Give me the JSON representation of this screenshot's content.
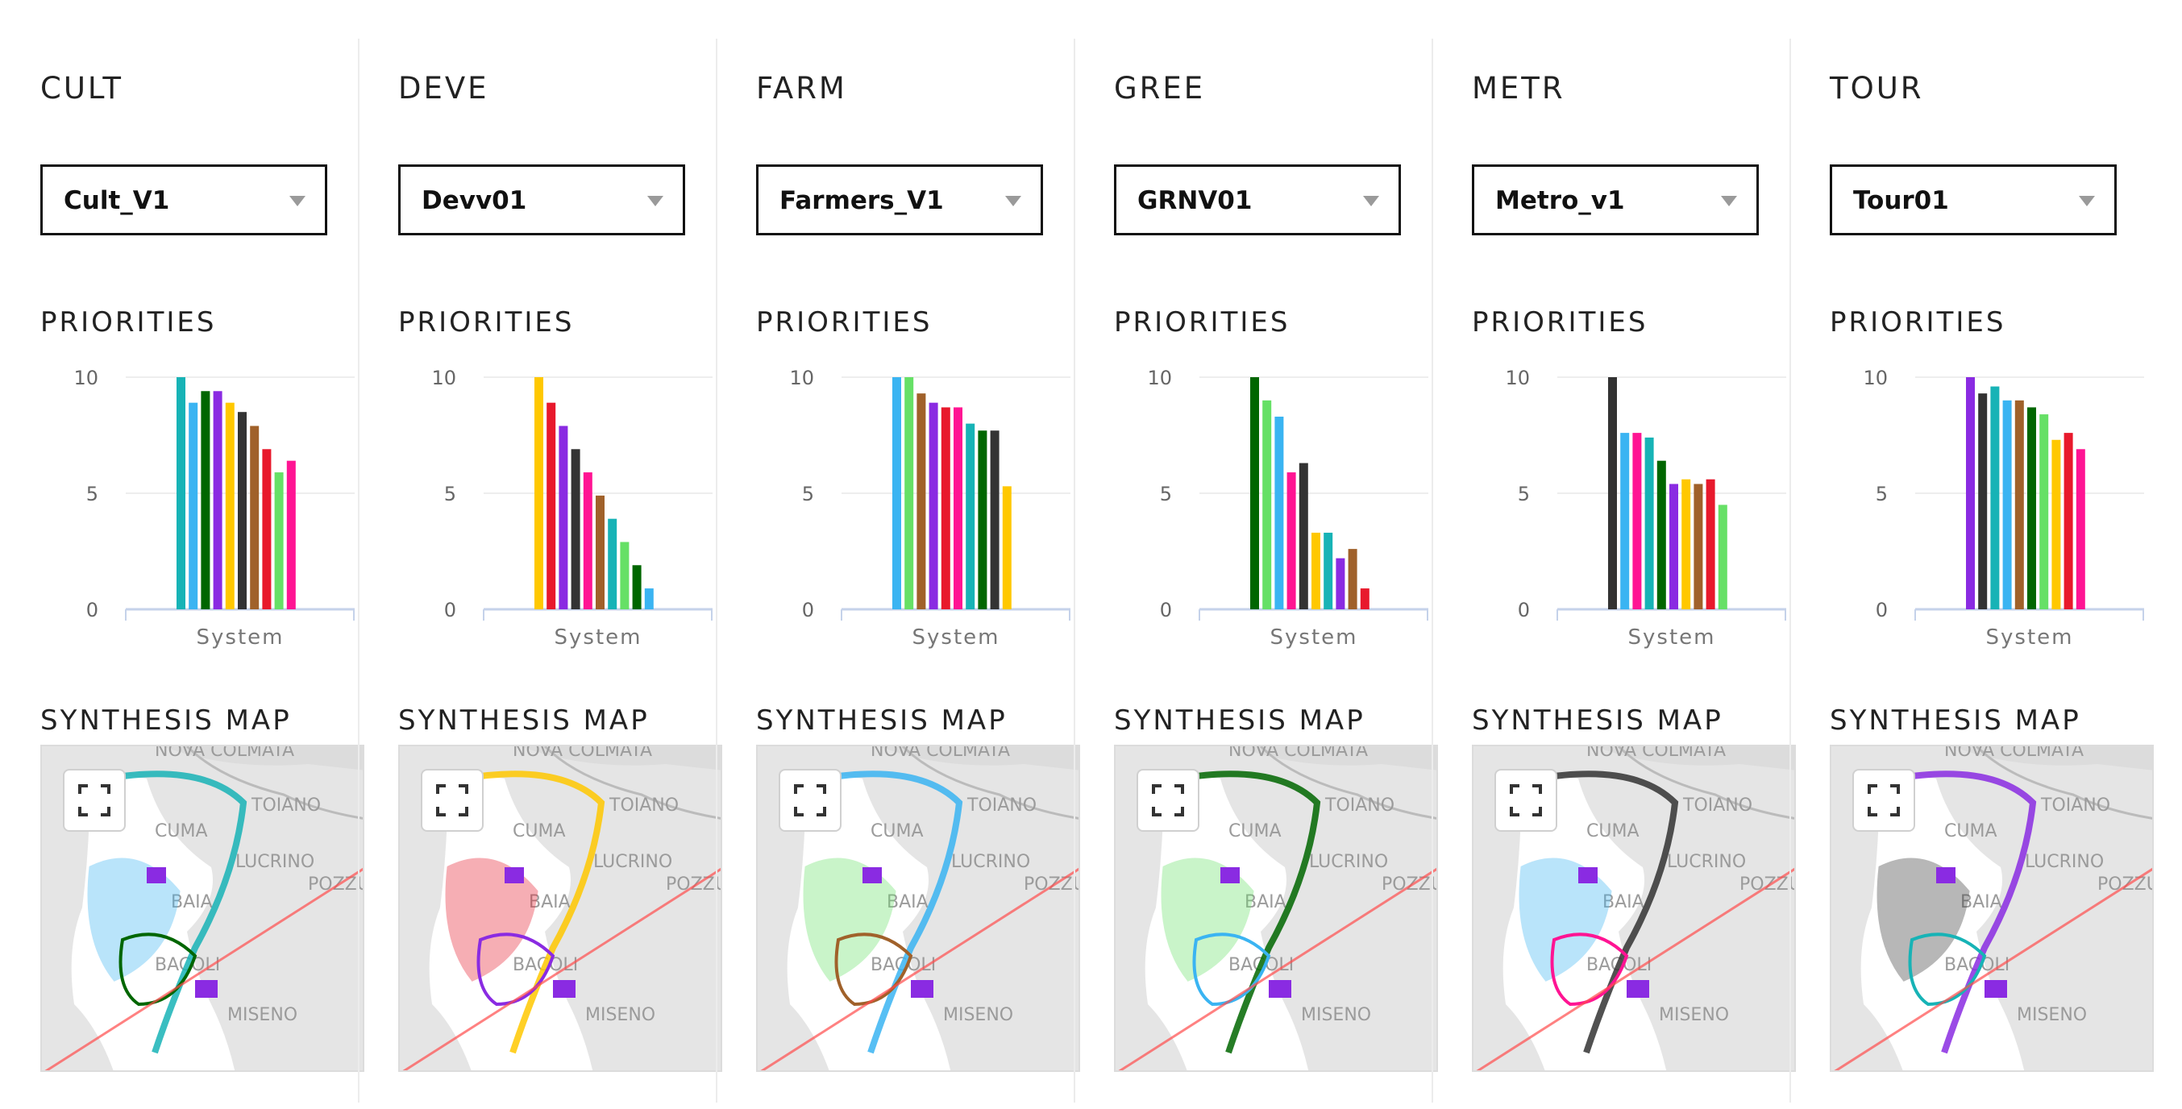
{
  "labels": {
    "priorities": "PRIORITIES",
    "synthesis_map": "SYNTHESIS MAP",
    "x_category": "System",
    "y_ticks": [
      "10",
      "5",
      "0"
    ]
  },
  "map_place_names": [
    "NOVA COLMATA",
    "TOIANO",
    "CUMA",
    "LUCRINO",
    "POZZUOLI",
    "BAIA",
    "BACOLI",
    "MISENO"
  ],
  "columns": [
    {
      "title": "CULT",
      "select_value": "Cult_V1"
    },
    {
      "title": "DEVE",
      "select_value": "Devv01"
    },
    {
      "title": "FARM",
      "select_value": "Farmers_V1"
    },
    {
      "title": "GREE",
      "select_value": "GRNV01"
    },
    {
      "title": "METR",
      "select_value": "Metro_v1"
    },
    {
      "title": "TOUR",
      "select_value": "Tour01"
    }
  ],
  "chart_data": [
    {
      "type": "bar",
      "title": "PRIORITIES",
      "categories": [
        "System"
      ],
      "ylim": [
        0,
        10
      ],
      "yticks": [
        0,
        5,
        10
      ],
      "bars": [
        {
          "color": "#17b3b6",
          "value": 10
        },
        {
          "color": "#3ab4f2",
          "value": 8.9
        },
        {
          "color": "#006600",
          "value": 9.4
        },
        {
          "color": "#8a2be2",
          "value": 9.4
        },
        {
          "color": "#ffc800",
          "value": 8.9
        },
        {
          "color": "#333333",
          "value": 8.5
        },
        {
          "color": "#a0612a",
          "value": 7.9
        },
        {
          "color": "#e8192c",
          "value": 6.9
        },
        {
          "color": "#66e066",
          "value": 5.9
        },
        {
          "color": "#ff1493",
          "value": 6.4
        }
      ]
    },
    {
      "type": "bar",
      "title": "PRIORITIES",
      "categories": [
        "System"
      ],
      "ylim": [
        0,
        10
      ],
      "yticks": [
        0,
        5,
        10
      ],
      "bars": [
        {
          "color": "#ffc800",
          "value": 10
        },
        {
          "color": "#e8192c",
          "value": 8.9
        },
        {
          "color": "#8a2be2",
          "value": 7.9
        },
        {
          "color": "#333333",
          "value": 6.9
        },
        {
          "color": "#ff1493",
          "value": 5.9
        },
        {
          "color": "#a0612a",
          "value": 4.9
        },
        {
          "color": "#17b3b6",
          "value": 3.9
        },
        {
          "color": "#66e066",
          "value": 2.9
        },
        {
          "color": "#006600",
          "value": 1.9
        },
        {
          "color": "#3ab4f2",
          "value": 0.9
        }
      ]
    },
    {
      "type": "bar",
      "title": "PRIORITIES",
      "categories": [
        "System"
      ],
      "ylim": [
        0,
        10
      ],
      "yticks": [
        0,
        5,
        10
      ],
      "bars": [
        {
          "color": "#3ab4f2",
          "value": 10
        },
        {
          "color": "#66e066",
          "value": 10
        },
        {
          "color": "#a0612a",
          "value": 9.3
        },
        {
          "color": "#8a2be2",
          "value": 8.9
        },
        {
          "color": "#e8192c",
          "value": 8.7
        },
        {
          "color": "#ff1493",
          "value": 8.7
        },
        {
          "color": "#17b3b6",
          "value": 8
        },
        {
          "color": "#006600",
          "value": 7.7
        },
        {
          "color": "#333333",
          "value": 7.7
        },
        {
          "color": "#ffc800",
          "value": 5.3
        }
      ]
    },
    {
      "type": "bar",
      "title": "PRIORITIES",
      "categories": [
        "System"
      ],
      "ylim": [
        0,
        10
      ],
      "yticks": [
        0,
        5,
        10
      ],
      "bars": [
        {
          "color": "#006600",
          "value": 10
        },
        {
          "color": "#66e066",
          "value": 9
        },
        {
          "color": "#3ab4f2",
          "value": 8.3
        },
        {
          "color": "#ff1493",
          "value": 5.9
        },
        {
          "color": "#333333",
          "value": 6.3
        },
        {
          "color": "#ffc800",
          "value": 3.3
        },
        {
          "color": "#17b3b6",
          "value": 3.3
        },
        {
          "color": "#8a2be2",
          "value": 2.2
        },
        {
          "color": "#a0612a",
          "value": 2.6
        },
        {
          "color": "#e8192c",
          "value": 0.9
        }
      ]
    },
    {
      "type": "bar",
      "title": "PRIORITIES",
      "categories": [
        "System"
      ],
      "ylim": [
        0,
        10
      ],
      "yticks": [
        0,
        5,
        10
      ],
      "bars": [
        {
          "color": "#333333",
          "value": 10
        },
        {
          "color": "#3ab4f2",
          "value": 7.6
        },
        {
          "color": "#ff1493",
          "value": 7.6
        },
        {
          "color": "#17b3b6",
          "value": 7.4
        },
        {
          "color": "#006600",
          "value": 6.4
        },
        {
          "color": "#8a2be2",
          "value": 5.4
        },
        {
          "color": "#ffc800",
          "value": 5.6
        },
        {
          "color": "#a0612a",
          "value": 5.4
        },
        {
          "color": "#e8192c",
          "value": 5.6
        },
        {
          "color": "#66e066",
          "value": 4.5
        }
      ]
    },
    {
      "type": "bar",
      "title": "PRIORITIES",
      "categories": [
        "System"
      ],
      "ylim": [
        0,
        10
      ],
      "yticks": [
        0,
        5,
        10
      ],
      "bars": [
        {
          "color": "#8a2be2",
          "value": 10
        },
        {
          "color": "#333333",
          "value": 9.3
        },
        {
          "color": "#17b3b6",
          "value": 9.6
        },
        {
          "color": "#3ab4f2",
          "value": 9
        },
        {
          "color": "#a0612a",
          "value": 9
        },
        {
          "color": "#006600",
          "value": 8.7
        },
        {
          "color": "#66e066",
          "value": 8.4
        },
        {
          "color": "#ffc800",
          "value": 7.3
        },
        {
          "color": "#e8192c",
          "value": 7.6
        },
        {
          "color": "#ff1493",
          "value": 6.9
        }
      ]
    }
  ]
}
